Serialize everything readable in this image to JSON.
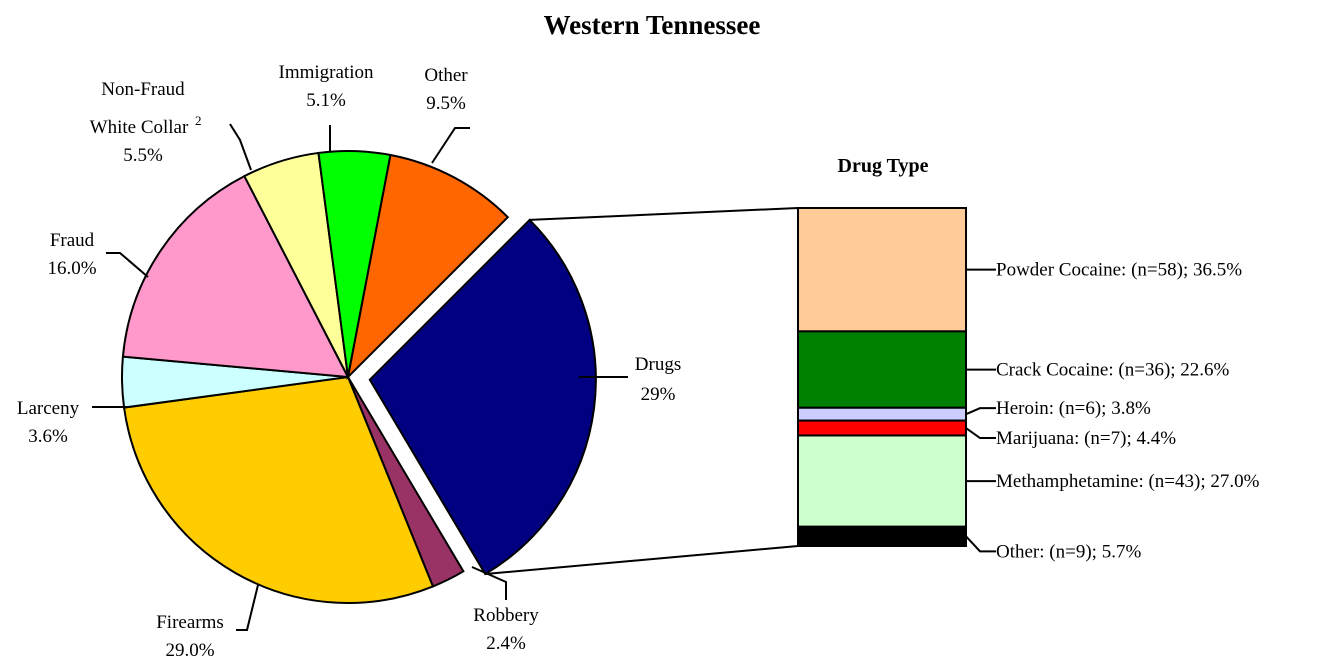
{
  "chart_data": {
    "type": "pie",
    "title": "Western Tennessee",
    "slices": [
      {
        "key": "drugs",
        "label": "Drugs",
        "value": 29.0,
        "value_text": "29%",
        "color": "#000080",
        "exploded": true
      },
      {
        "key": "robbery",
        "label": "Robbery",
        "value": 2.4,
        "value_text": "2.4%",
        "color": "#993366"
      },
      {
        "key": "firearms",
        "label": "Firearms",
        "value": 29.0,
        "value_text": "29.0%",
        "color": "#FFCC00"
      },
      {
        "key": "larceny",
        "label": "Larceny",
        "value": 3.6,
        "value_text": "3.6%",
        "color": "#CCFFFF"
      },
      {
        "key": "fraud",
        "label": "Fraud",
        "value": 16.0,
        "value_text": "16.0%",
        "color": "#FF99CC"
      },
      {
        "key": "non-fraud-white-collar",
        "label": "Non-Fraud",
        "label_line2": "White Collar",
        "superscript": "2",
        "value": 5.5,
        "value_text": "5.5%",
        "color": "#FFFF99"
      },
      {
        "key": "immigration",
        "label": "Immigration",
        "value": 5.1,
        "value_text": "5.1%",
        "color": "#00FF00"
      },
      {
        "key": "other",
        "label": "Other",
        "value": 9.5,
        "value_text": "9.5%",
        "color": "#FF6600"
      }
    ],
    "breakdown": {
      "type": "stacked-bar",
      "title": "Drug Type",
      "segments": [
        {
          "key": "powder-cocaine",
          "label": "Powder Cocaine",
          "n": 58,
          "value": 36.5,
          "text": "Powder Cocaine: (n=58); 36.5%",
          "color": "#FFCC99"
        },
        {
          "key": "crack-cocaine",
          "label": "Crack Cocaine",
          "n": 36,
          "value": 22.6,
          "text": "Crack Cocaine: (n=36); 22.6%",
          "color": "#008000"
        },
        {
          "key": "heroin",
          "label": "Heroin",
          "n": 6,
          "value": 3.8,
          "text": "Heroin: (n=6); 3.8%",
          "color": "#CCCCFF"
        },
        {
          "key": "marijuana",
          "label": "Marijuana",
          "n": 7,
          "value": 4.4,
          "text": "Marijuana: (n=7); 4.4%",
          "color": "#FF0000"
        },
        {
          "key": "methamphetamine",
          "label": "Methamphetamine",
          "n": 43,
          "value": 27.0,
          "text": "Methamphetamine: (n=43); 27.0%",
          "color": "#CCFFCC"
        },
        {
          "key": "other",
          "label": "Other",
          "n": 9,
          "value": 5.7,
          "text": "Other: (n=9); 5.7%",
          "color": "#000000"
        }
      ]
    }
  }
}
